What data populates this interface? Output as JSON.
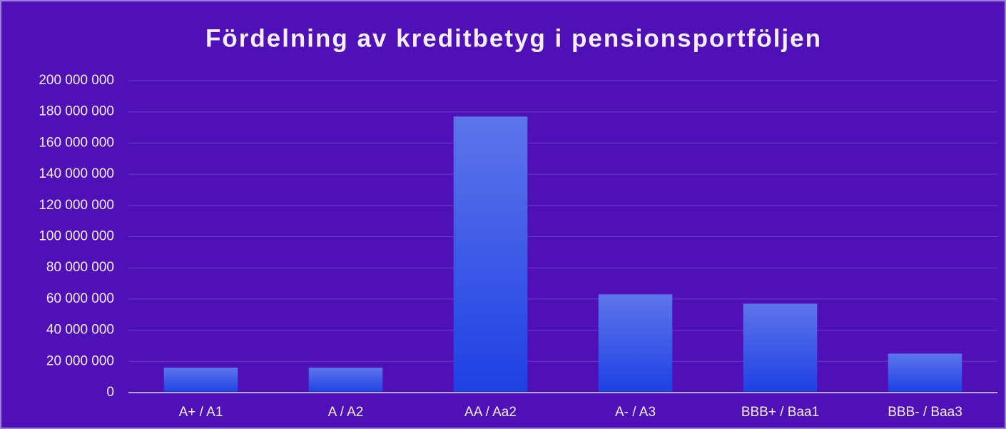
{
  "chart_data": {
    "type": "bar",
    "title": "Fördelning av kreditbetyg i pensionsportföljen",
    "categories": [
      "A+ / A1",
      "A / A2",
      "AA / Aa2",
      "A- / A3",
      "BBB+ / Baa1",
      "BBB- / Baa3"
    ],
    "values": [
      16000000,
      16000000,
      177000000,
      63000000,
      57000000,
      25000000
    ],
    "color": "#1e40e4",
    "ylim": [
      0,
      200000000
    ],
    "yticks": [
      0,
      {
        "value": 20000000,
        "label": "20 000 000"
      },
      {
        "value": 40000000,
        "label": "40 000 000"
      },
      {
        "value": 60000000,
        "label": "60 000 000"
      },
      {
        "value": 80000000,
        "label": "80 000 000"
      },
      {
        "value": 100000000,
        "label": "100 000 000"
      },
      {
        "value": 120000000,
        "label": "120 000 000"
      },
      {
        "value": 140000000,
        "label": "140 000 000"
      },
      {
        "value": 160000000,
        "label": "160 000 000"
      },
      {
        "value": 180000000,
        "label": "180 000 000"
      },
      {
        "value": 200000000,
        "label": "200 000 000"
      }
    ],
    "grid": true
  }
}
